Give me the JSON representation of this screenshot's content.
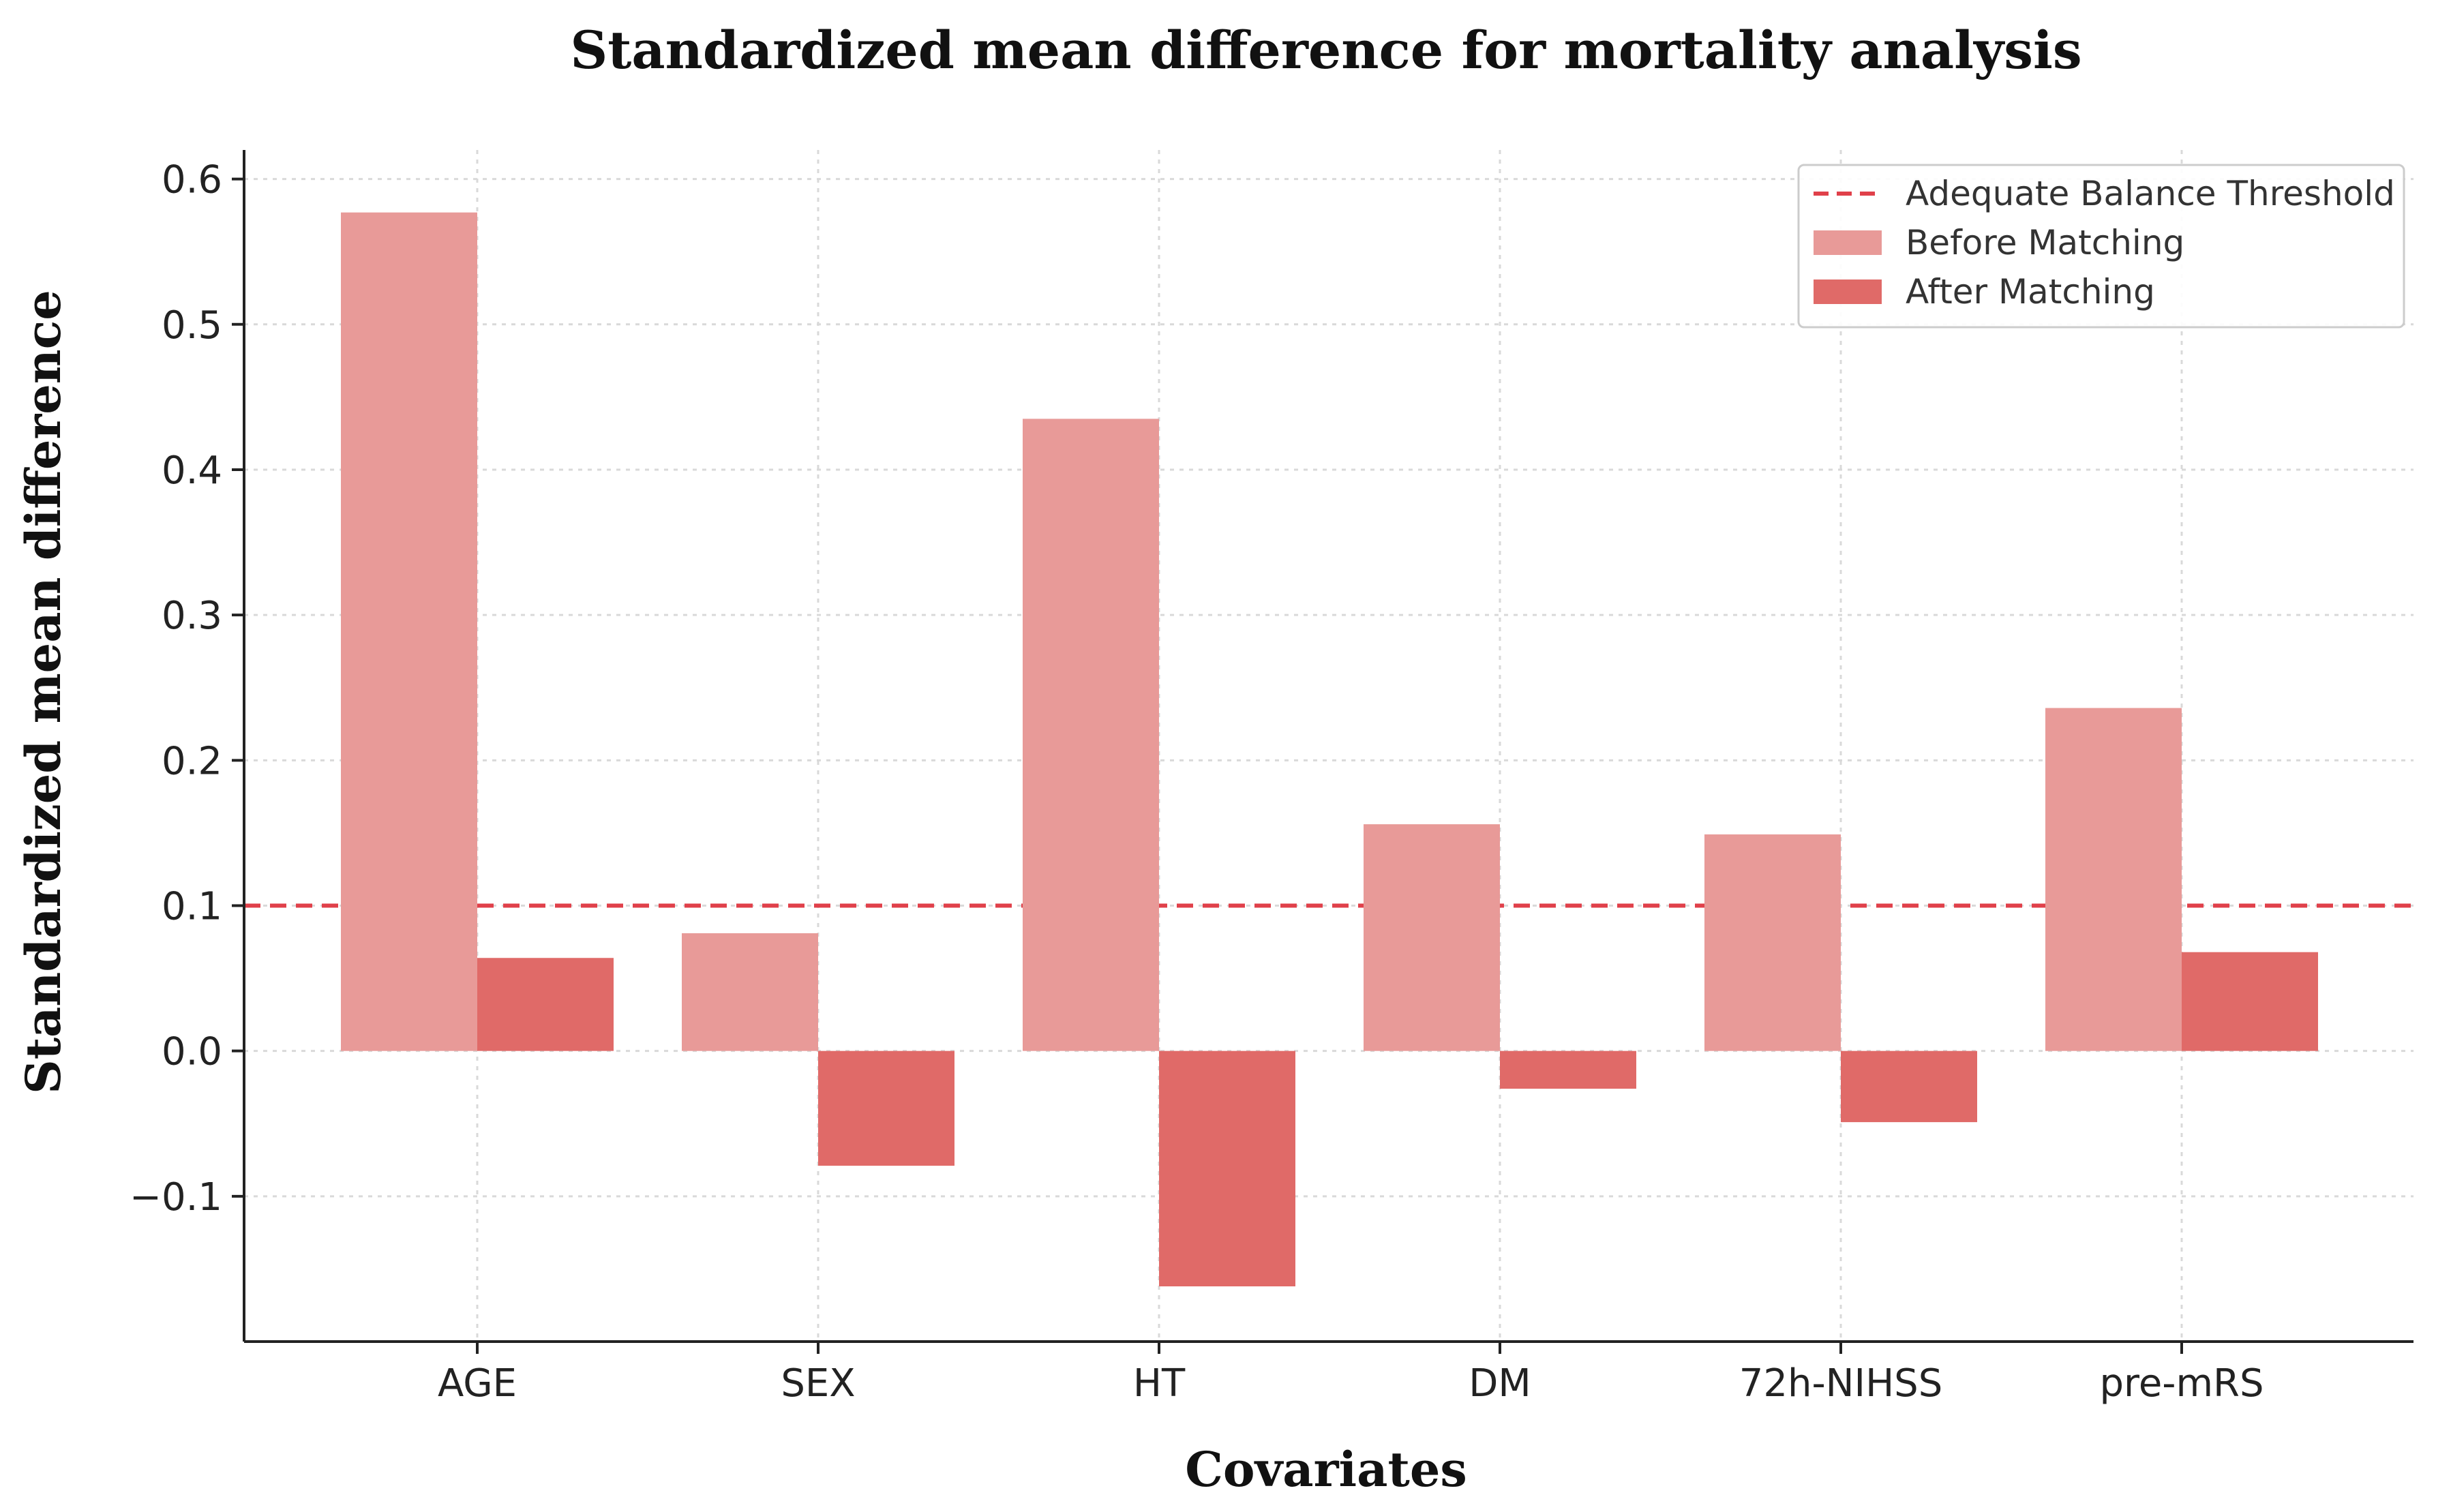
{
  "chart_data": {
    "type": "bar",
    "title": "Standardized mean difference for mortality analysis",
    "xlabel": "Covariates",
    "ylabel": "Standardized mean difference",
    "categories": [
      "AGE",
      "SEX",
      "HT",
      "DM",
      "72h-NIHSS",
      "pre-mRS"
    ],
    "series": [
      {
        "name": "Before Matching",
        "color": "#e89a98",
        "values": [
          0.577,
          0.081,
          0.435,
          0.156,
          0.149,
          0.236
        ]
      },
      {
        "name": "After Matching",
        "color": "#e06a68",
        "values": [
          0.064,
          -0.079,
          -0.162,
          -0.026,
          -0.049,
          0.068
        ]
      }
    ],
    "threshold": {
      "name": "Adequate Balance Threshold",
      "value": 0.1,
      "color": "#e0404a",
      "style": "dashed"
    },
    "ylim": [
      -0.2,
      0.62
    ],
    "yticks": [
      -0.1,
      0.0,
      0.1,
      0.2,
      0.3,
      0.4,
      0.5,
      0.6
    ],
    "ytick_labels": [
      "−0.1",
      "0.0",
      "0.1",
      "0.2",
      "0.3",
      "0.4",
      "0.5",
      "0.6"
    ],
    "grid": true,
    "legend_position": "top-right"
  }
}
